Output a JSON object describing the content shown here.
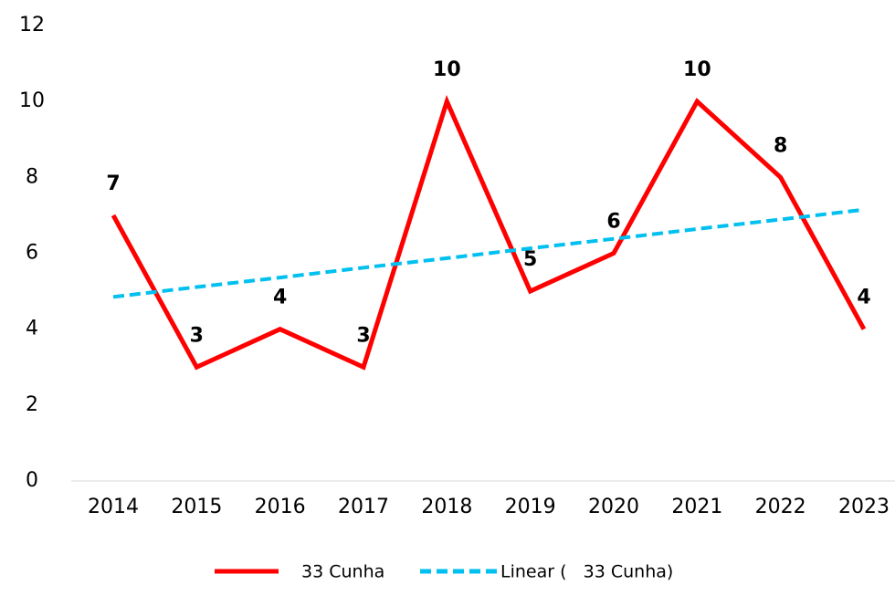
{
  "chart_data": {
    "type": "line",
    "categories": [
      "2014",
      "2015",
      "2016",
      "2017",
      "2018",
      "2019",
      "2020",
      "2021",
      "2022",
      "2023"
    ],
    "series": [
      {
        "name": "33 Cunha",
        "color": "#ff0000",
        "dashed": false,
        "data_labels": true,
        "values": [
          7,
          3,
          4,
          3,
          10,
          5,
          6,
          10,
          8,
          4
        ]
      },
      {
        "name": "Linear (   33 Cunha)",
        "color": "#00c0f0",
        "dashed": true,
        "data_labels": false,
        "values": [
          4.85,
          5.11,
          5.36,
          5.62,
          5.87,
          6.13,
          6.38,
          6.64,
          6.89,
          7.15
        ]
      }
    ],
    "ylim": [
      0,
      12
    ],
    "yticks": [
      0,
      2,
      4,
      6,
      8,
      10,
      12
    ],
    "grid": false,
    "legend": "bottom"
  }
}
